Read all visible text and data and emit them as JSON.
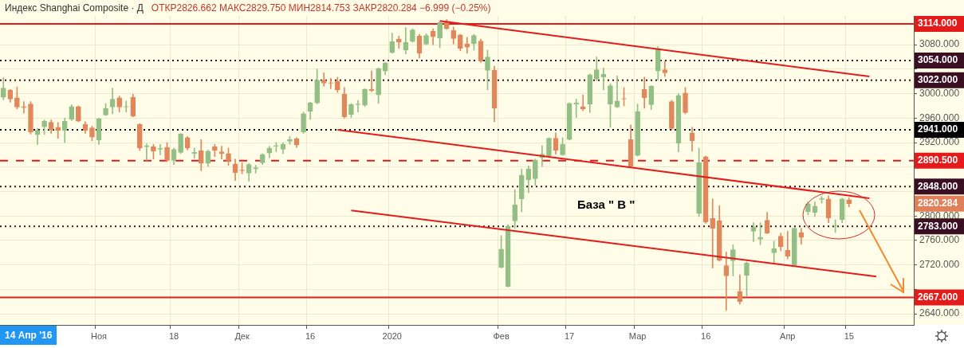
{
  "chart_data": {
    "type": "candlestick",
    "title": "Индекс Shanghai Composite · Д",
    "subtitle": "ОТКР2826.662 МАКС2829.750 МИН2814.753 ЗАКР2820.284 −6.999 (−0.25%)",
    "categories": [
      null,
      null,
      null,
      null,
      null,
      null,
      null,
      null,
      null,
      null,
      null,
      null,
      null,
      null,
      "Ноя",
      null,
      null,
      null,
      null,
      null,
      null,
      null,
      null,
      null,
      null,
      "18",
      null,
      null,
      null,
      null,
      null,
      null,
      null,
      null,
      null,
      "Дек",
      null,
      null,
      null,
      null,
      null,
      null,
      null,
      null,
      null,
      "16",
      null,
      null,
      null,
      null,
      null,
      null,
      null,
      null,
      null,
      null,
      null,
      "2020",
      null,
      null,
      null,
      null,
      null,
      null,
      null,
      null,
      null,
      null,
      null,
      null,
      null,
      null,
      null,
      "Фев",
      null,
      null,
      null,
      null,
      null,
      null,
      null,
      null,
      null,
      "17",
      null,
      null,
      null,
      null,
      null,
      null,
      null,
      null,
      null,
      "Мар",
      null,
      null,
      null,
      null,
      null,
      null,
      null,
      null,
      null,
      "16",
      null,
      null,
      null,
      null,
      null,
      null,
      null,
      null,
      null,
      null,
      null,
      "Апр",
      null,
      null,
      null,
      null,
      null,
      null,
      null,
      null,
      "15",
      null,
      null,
      null,
      null,
      null,
      null,
      null,
      null,
      null
    ],
    "series": [
      {
        "type": "candlestick",
        "ohlc": [
          [
            2994,
            3026,
            2990,
            3009
          ],
          [
            3006,
            3007,
            2986,
            2991
          ],
          [
            2993,
            3011,
            2975,
            2978
          ],
          [
            2979,
            2987,
            2968,
            2977
          ],
          [
            2983,
            2987,
            2934,
            2937
          ],
          [
            2933,
            2943,
            2917,
            2940
          ],
          [
            2946,
            2957,
            2933,
            2955
          ],
          [
            2953,
            2957,
            2935,
            2941
          ],
          [
            2945,
            2953,
            2927,
            2940
          ],
          [
            2940,
            2960,
            2920,
            2955
          ],
          [
            2958,
            2982,
            2956,
            2979
          ],
          [
            2979,
            2980,
            2954,
            2955
          ],
          [
            2950,
            2954,
            2935,
            2940
          ],
          [
            2944,
            2947,
            2923,
            2929
          ],
          [
            2924,
            2960,
            2917,
            2959
          ],
          [
            2965,
            2984,
            2964,
            2976
          ],
          [
            2978,
            3009,
            2967,
            2991
          ],
          [
            2993,
            2996,
            2970,
            2978
          ],
          [
            2978,
            2988,
            2970,
            2979
          ],
          [
            2994,
            2999,
            2962,
            2963
          ],
          [
            2950,
            2951,
            2907,
            2911
          ],
          [
            2913,
            2918,
            2891,
            2915
          ],
          [
            2913,
            2917,
            2893,
            2906
          ],
          [
            2909,
            2917,
            2900,
            2911
          ],
          [
            2912,
            2920,
            2889,
            2891
          ],
          [
            2891,
            2911,
            2884,
            2909
          ],
          [
            2904,
            2935,
            2902,
            2934
          ],
          [
            2928,
            2930,
            2908,
            2911
          ],
          [
            2902,
            2911,
            2894,
            2904
          ],
          [
            2907,
            2925,
            2874,
            2886
          ],
          [
            2886,
            2908,
            2881,
            2906
          ],
          [
            2913,
            2917,
            2897,
            2907
          ],
          [
            2905,
            2914,
            2893,
            2902
          ],
          [
            2902,
            2911,
            2883,
            2890
          ],
          [
            2885,
            2893,
            2858,
            2871
          ],
          [
            2875,
            2887,
            2869,
            2874
          ],
          [
            2870,
            2886,
            2857,
            2884
          ],
          [
            2877,
            2883,
            2870,
            2879
          ],
          [
            2887,
            2902,
            2884,
            2900
          ],
          [
            2903,
            2914,
            2895,
            2911
          ],
          [
            2914,
            2920,
            2905,
            2915
          ],
          [
            2909,
            2920,
            2902,
            2917
          ],
          [
            2922,
            2930,
            2917,
            2925
          ],
          [
            2926,
            2928,
            2912,
            2916
          ],
          [
            2937,
            2970,
            2935,
            2967
          ],
          [
            2971,
            2986,
            2958,
            2985
          ],
          [
            2985,
            3040,
            2983,
            3022
          ],
          [
            3022,
            3034,
            3012,
            3017
          ],
          [
            3018,
            3025,
            3008,
            3017
          ],
          [
            3020,
            3027,
            3002,
            3006
          ],
          [
            2999,
            3010,
            2960,
            2962
          ],
          [
            2966,
            2984,
            2961,
            2982
          ],
          [
            2982,
            2989,
            2970,
            2983
          ],
          [
            2981,
            3008,
            2979,
            3007
          ],
          [
            3007,
            3037,
            3003,
            3005
          ],
          [
            2998,
            3042,
            2984,
            3041
          ],
          [
            3037,
            3051,
            3031,
            3050
          ],
          [
            3067,
            3099,
            3066,
            3085
          ],
          [
            3089,
            3094,
            3074,
            3084
          ],
          [
            3071,
            3108,
            3065,
            3084
          ],
          [
            3085,
            3106,
            3084,
            3104
          ],
          [
            3094,
            3097,
            3058,
            3066
          ],
          [
            3081,
            3098,
            3080,
            3095
          ],
          [
            3102,
            3106,
            3080,
            3093
          ],
          [
            3091,
            3118,
            3075,
            3116
          ],
          [
            3118,
            3121,
            3105,
            3106
          ],
          [
            3103,
            3109,
            3081,
            3090
          ],
          [
            3096,
            3097,
            3070,
            3074
          ],
          [
            3081,
            3092,
            3066,
            3076
          ],
          [
            3082,
            3097,
            3071,
            3095
          ],
          [
            3086,
            3089,
            3051,
            3053
          ],
          [
            3038,
            3071,
            3006,
            3060
          ],
          [
            3038,
            3045,
            2954,
            2976
          ],
          [
            2716,
            2768,
            2715,
            2746
          ],
          [
            2685,
            2786,
            2684,
            2783
          ],
          [
            2792,
            2843,
            2780,
            2818
          ],
          [
            2828,
            2877,
            2807,
            2867
          ],
          [
            2859,
            2882,
            2838,
            2877
          ],
          [
            2861,
            2893,
            2850,
            2891
          ],
          [
            2895,
            2915,
            2881,
            2901
          ],
          [
            2898,
            2928,
            2895,
            2927
          ],
          [
            2927,
            2936,
            2901,
            2907
          ],
          [
            2900,
            2928,
            2899,
            2917
          ],
          [
            2925,
            2985,
            2924,
            2984
          ],
          [
            2983,
            2991,
            2961,
            2985
          ],
          [
            2979,
            2998,
            2972,
            2975
          ],
          [
            2983,
            3032,
            2969,
            3031
          ],
          [
            3024,
            3060,
            3021,
            3039
          ],
          [
            3027,
            3042,
            3006,
            3032
          ],
          [
            2983,
            3016,
            2945,
            3013
          ],
          [
            2978,
            3029,
            2977,
            2988
          ],
          [
            2992,
            3010,
            2980,
            2991
          ],
          [
            2925,
            2949,
            2879,
            2881
          ],
          [
            2899,
            2983,
            2898,
            2971
          ],
          [
            3007,
            3027,
            2976,
            2993
          ],
          [
            2982,
            3013,
            2974,
            3012
          ],
          [
            3037,
            3077,
            3022,
            3073
          ],
          [
            3039,
            3053,
            3028,
            3034
          ],
          [
            2987,
            2989,
            2941,
            2943
          ],
          [
            2919,
            3000,
            2905,
            2997
          ],
          [
            3001,
            3010,
            2967,
            2969
          ],
          [
            2936,
            2945,
            2906,
            2923
          ],
          [
            2804,
            2911,
            2799,
            2887
          ],
          [
            2897,
            2898,
            2788,
            2790
          ],
          [
            2796,
            2828,
            2715,
            2780
          ],
          [
            2792,
            2817,
            2726,
            2728
          ],
          [
            2719,
            2741,
            2646,
            2702
          ],
          [
            2727,
            2753,
            2702,
            2745
          ],
          [
            2677,
            2704,
            2656,
            2660
          ],
          [
            2703,
            2725,
            2669,
            2723
          ],
          [
            2775,
            2789,
            2758,
            2782
          ],
          [
            2762,
            2789,
            2753,
            2765
          ],
          [
            2793,
            2806,
            2771,
            2772
          ],
          [
            2740,
            2759,
            2724,
            2747
          ],
          [
            2767,
            2772,
            2743,
            2750
          ],
          [
            2744,
            2775,
            2730,
            2734
          ],
          [
            2719,
            2781,
            2718,
            2780
          ],
          [
            2773,
            2780,
            2754,
            2765
          ],
          [
            2807,
            2823,
            2802,
            2820
          ],
          [
            2806,
            2823,
            2799,
            2816
          ],
          [
            2827,
            2832,
            2821,
            2829
          ],
          [
            2828,
            2833,
            2789,
            2797
          ],
          [
            2784,
            2794,
            2773,
            2785
          ],
          [
            2794,
            2829,
            2789,
            2828
          ],
          [
            2826.662,
            2829.75,
            2814.753,
            2820.284
          ],
          null,
          null,
          null,
          null,
          null,
          null,
          null,
          null,
          null
        ],
        "colors": [
          "#93bf85",
          "#e0885c",
          "#e0885c",
          "#e0885c",
          "#e0885c",
          "#93bf85",
          "#93bf85",
          "#e0885c",
          "#e0885c",
          "#93bf85",
          "#93bf85",
          "#e0885c",
          "#e0885c",
          "#e0885c",
          "#93bf85",
          "#93bf85",
          "#93bf85",
          "#e0885c",
          "#93bf85",
          "#e0885c",
          "#e0885c",
          "#93bf85",
          "#e0885c",
          "#93bf85",
          "#e0885c",
          "#93bf85",
          "#93bf85",
          "#e0885c",
          "#93bf85",
          "#e0885c",
          "#93bf85",
          "#e0885c",
          "#e0885c",
          "#e0885c",
          "#e0885c",
          "#e0885c",
          "#93bf85",
          "#93bf85",
          "#93bf85",
          "#93bf85",
          "#93bf85",
          "#93bf85",
          "#93bf85",
          "#e0885c",
          "#93bf85",
          "#93bf85",
          "#93bf85",
          "#e0885c",
          "#e0885c",
          "#e0885c",
          "#e0885c",
          "#93bf85",
          "#93bf85",
          "#93bf85",
          "#e0885c",
          "#93bf85",
          "#93bf85",
          "#93bf85",
          "#e0885c",
          "#93bf85",
          "#93bf85",
          "#e0885c",
          "#93bf85",
          "#e0885c",
          "#93bf85",
          "#e0885c",
          "#e0885c",
          "#e0885c",
          "#e0885c",
          "#93bf85",
          "#e0885c",
          "#93bf85",
          "#e0885c",
          "#93bf85",
          "#93bf85",
          "#93bf85",
          "#93bf85",
          "#93bf85",
          "#93bf85",
          "#93bf85",
          "#93bf85",
          "#e0885c",
          "#93bf85",
          "#93bf85",
          "#93bf85",
          "#e0885c",
          "#93bf85",
          "#93bf85",
          "#93bf85",
          "#93bf85",
          "#93bf85",
          "#e0885c",
          "#e0885c",
          "#93bf85",
          "#e0885c",
          "#93bf85",
          "#93bf85",
          "#e0885c",
          "#e0885c",
          "#93bf85",
          "#e0885c",
          "#e0885c",
          "#93bf85",
          "#e0885c",
          "#e0885c",
          "#e0885c",
          "#e0885c",
          "#93bf85",
          "#e0885c",
          "#93bf85",
          "#93bf85",
          "#93bf85",
          "#e0885c",
          "#93bf85",
          "#e0885c",
          "#e0885c",
          "#93bf85",
          "#e0885c",
          "#93bf85",
          "#93bf85",
          "#93bf85",
          "#e0885c",
          "#93bf85",
          "#93bf85",
          "#e0885c",
          null,
          null,
          null,
          null,
          null,
          null,
          null,
          null,
          null
        ]
      },
      {
        "type": "line",
        "color": "#e31b1b",
        "values": [
          null,
          null,
          null,
          null,
          null,
          null,
          null,
          null,
          null,
          null,
          null,
          null,
          null,
          null,
          null,
          null,
          null,
          null,
          null,
          null,
          null,
          null,
          null,
          null,
          null,
          null,
          null,
          null,
          null,
          null,
          null,
          null,
          null,
          null,
          null,
          null,
          null,
          null,
          null,
          null,
          null,
          null,
          null,
          null,
          null,
          null,
          null,
          null,
          null,
          null,
          null,
          null,
          null,
          null,
          null,
          null,
          null,
          null,
          null,
          null,
          null,
          null,
          null,
          null,
          3119,
          null,
          null,
          null,
          null,
          null,
          null,
          null,
          null,
          null,
          null,
          null,
          null,
          null,
          null,
          null,
          null,
          null,
          null,
          null,
          null,
          null,
          null,
          null,
          null,
          null,
          null,
          null,
          null,
          null,
          null,
          null,
          null,
          null,
          null,
          null,
          null,
          null,
          null,
          null,
          null,
          null,
          null,
          null,
          null,
          null,
          null,
          null,
          null,
          null,
          null,
          null,
          null,
          null,
          null,
          null,
          null,
          null,
          null,
          null,
          null,
          null,
          null,
          3028,
          null,
          null,
          null,
          null,
          null,
          null
        ]
      },
      {
        "type": "line",
        "color": "#e31b1b",
        "values": [
          null,
          null,
          null,
          null,
          null,
          null,
          null,
          null,
          null,
          null,
          null,
          null,
          null,
          null,
          null,
          null,
          null,
          null,
          null,
          null,
          null,
          null,
          null,
          null,
          null,
          null,
          null,
          null,
          null,
          null,
          null,
          null,
          null,
          null,
          null,
          null,
          null,
          null,
          null,
          null,
          null,
          null,
          null,
          null,
          null,
          null,
          null,
          null,
          null,
          2941,
          null,
          null,
          null,
          null,
          null,
          null,
          null,
          null,
          null,
          null,
          null,
          null,
          null,
          null,
          null,
          null,
          null,
          null,
          null,
          null,
          null,
          null,
          null,
          null,
          null,
          null,
          null,
          null,
          null,
          null,
          null,
          null,
          null,
          null,
          null,
          null,
          null,
          null,
          null,
          null,
          null,
          null,
          null,
          null,
          null,
          null,
          null,
          null,
          null,
          null,
          null,
          null,
          null,
          null,
          null,
          null,
          null,
          null,
          null,
          null,
          null,
          null,
          null,
          null,
          null,
          null,
          null,
          null,
          null,
          null,
          null,
          null,
          null,
          null,
          null,
          null,
          null,
          2829,
          null,
          null,
          null,
          null,
          null,
          null
        ]
      },
      {
        "type": "line",
        "color": "#e31b1b",
        "values": [
          null,
          null,
          null,
          null,
          null,
          null,
          null,
          null,
          null,
          null,
          null,
          null,
          null,
          null,
          null,
          null,
          null,
          null,
          null,
          null,
          null,
          null,
          null,
          null,
          null,
          null,
          null,
          null,
          null,
          null,
          null,
          null,
          null,
          null,
          null,
          null,
          null,
          null,
          null,
          null,
          null,
          null,
          null,
          null,
          null,
          null,
          null,
          null,
          null,
          null,
          null,
          2809,
          null,
          null,
          null,
          null,
          null,
          null,
          null,
          null,
          null,
          null,
          null,
          null,
          null,
          null,
          null,
          null,
          null,
          null,
          null,
          null,
          null,
          null,
          null,
          null,
          null,
          null,
          null,
          null,
          null,
          null,
          null,
          null,
          null,
          null,
          null,
          null,
          null,
          null,
          null,
          null,
          null,
          null,
          null,
          null,
          null,
          null,
          null,
          null,
          null,
          null,
          null,
          null,
          null,
          null,
          null,
          null,
          null,
          null,
          null,
          null,
          null,
          null,
          null,
          null,
          null,
          null,
          null,
          null,
          null,
          null,
          null,
          null,
          null,
          null,
          null,
          null,
          2701,
          null,
          null,
          null,
          null,
          null
        ]
      }
    ],
    "ylim": [
      2622,
      3127
    ],
    "yticks": [
      {
        "value": 2640,
        "label": "2640.000"
      },
      {
        "value": 2680,
        "label": null
      },
      {
        "value": 2720,
        "label": "2720.000"
      },
      {
        "value": 2760,
        "label": "2760.000"
      },
      {
        "value": 2800,
        "label": "2800.000"
      },
      {
        "value": 2840,
        "label": null
      },
      {
        "value": 2880,
        "label": null
      },
      {
        "value": 2920,
        "label": "2920.000"
      },
      {
        "value": 2960,
        "label": "2960.000"
      },
      {
        "value": 3000,
        "label": "3000.000"
      },
      {
        "value": 3040,
        "label": null
      },
      {
        "value": 3080,
        "label": "3080.000"
      }
    ],
    "ref_lines": [
      {
        "axis": "y",
        "value": 3114,
        "label": "3114.000",
        "color": "#e31b1b",
        "line_style": "solid"
      },
      {
        "axis": "y",
        "value": 3054,
        "label": "3054.000",
        "color": "#3b0f22",
        "line_style": "dotted"
      },
      {
        "axis": "y",
        "value": 3022,
        "label": "3022.000",
        "color": "#3b0f22",
        "line_style": "dotted"
      },
      {
        "axis": "y",
        "value": 2941,
        "label": "2941.000",
        "color": "#000000",
        "line_style": "dotted"
      },
      {
        "axis": "y",
        "value": 2890.5,
        "label": "2890.500",
        "color": "#e31b1b",
        "line_style": "dashed"
      },
      {
        "axis": "y",
        "value": 2848,
        "label": "2848.000",
        "color": "#3b0f22",
        "line_style": "dotted"
      },
      {
        "axis": "y",
        "value": 2783,
        "label": "2783.000",
        "color": "#3b0f22",
        "line_style": "dotted"
      },
      {
        "axis": "y",
        "value": 2667,
        "label": "2667.000",
        "color": "#e31b1b",
        "line_style": "solid"
      }
    ],
    "annotations": [
      "База \" В \"",
      "14 Апр '16",
      "2820.284"
    ],
    "grid": true,
    "legend": false
  }
}
